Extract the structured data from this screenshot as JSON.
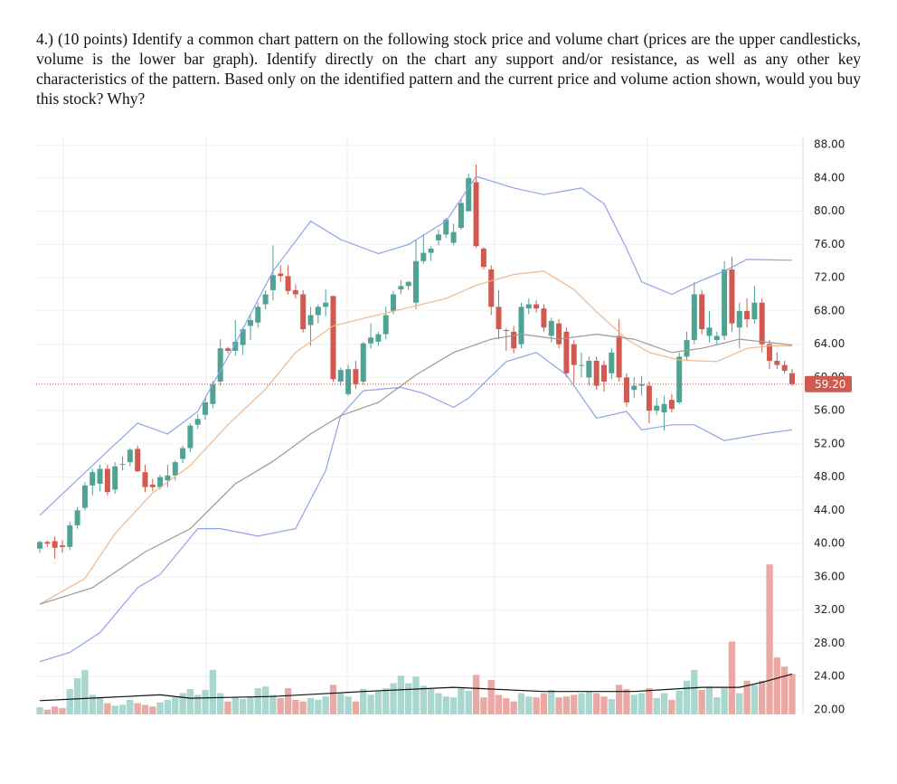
{
  "question": "4.) (10 points) Identify a common chart pattern on the following stock price and volume chart (prices are the upper candlesticks, volume is the lower bar graph). Identify directly on the chart any support and/or resistance, as well as any other key characteristics of the pattern. Based only on the identified pattern and the current price and volume action shown, would you buy this stock? Why?",
  "chart_data": {
    "type": "candlestick",
    "ylim": [
      19.45,
      89.1
    ],
    "yticks": [
      {
        "value": 20,
        "label": "20.00"
      },
      {
        "value": 24,
        "label": "24.00"
      },
      {
        "value": 28,
        "label": "28.00"
      },
      {
        "value": 32,
        "label": "32.00"
      },
      {
        "value": 36,
        "label": "36.00"
      },
      {
        "value": 40,
        "label": "40.00"
      },
      {
        "value": 44,
        "label": "44.00"
      },
      {
        "value": 48,
        "label": "48.00"
      },
      {
        "value": 52,
        "label": "52.00"
      },
      {
        "value": 56,
        "label": "56.00"
      },
      {
        "value": 60,
        "label": "60.00"
      },
      {
        "value": 64,
        "label": "64.00"
      },
      {
        "value": 68,
        "label": "68.00"
      },
      {
        "value": 72,
        "label": "72.00"
      },
      {
        "value": 76,
        "label": "76.00"
      },
      {
        "value": 80,
        "label": "80.00"
      },
      {
        "value": 84,
        "label": "84.00"
      },
      {
        "value": 88,
        "label": "88.00"
      }
    ],
    "grid": true,
    "up_color": "#4fa394",
    "down_color": "#d2594f",
    "up_volume_color": "#a9d6ce",
    "down_volume_color": "#eba9a5",
    "last_price": {
      "value": 59.2,
      "label": "59.20"
    },
    "ohlc": [
      [
        39.4,
        40.4,
        38.9,
        40.2
      ],
      [
        40.2,
        40.4,
        39.6,
        40.0
      ],
      [
        40.3,
        40.9,
        38.2,
        39.5
      ],
      [
        39.8,
        40.4,
        38.9,
        39.6
      ],
      [
        39.6,
        42.6,
        39.2,
        42.2
      ],
      [
        42.2,
        44.4,
        41.8,
        44.0
      ],
      [
        44.3,
        47.4,
        44.0,
        47.0
      ],
      [
        47.0,
        49.0,
        45.8,
        48.6
      ],
      [
        47.2,
        49.5,
        46.3,
        49.0
      ],
      [
        49.0,
        49.5,
        45.8,
        46.2
      ],
      [
        46.5,
        49.8,
        46.0,
        49.3
      ],
      [
        49.5,
        50.5,
        48.8,
        49.6
      ],
      [
        49.8,
        51.5,
        49.3,
        51.3
      ],
      [
        51.4,
        51.8,
        48.6,
        48.7
      ],
      [
        48.6,
        49.5,
        46.2,
        46.8
      ],
      [
        47.1,
        47.8,
        46.3,
        46.8
      ],
      [
        46.8,
        48.3,
        46.5,
        48.0
      ],
      [
        47.6,
        49.5,
        46.8,
        48.2
      ],
      [
        48.2,
        50.0,
        47.6,
        49.8
      ],
      [
        50.2,
        51.8,
        49.7,
        51.5
      ],
      [
        51.5,
        54.5,
        51.0,
        54.2
      ],
      [
        54.3,
        55.6,
        53.8,
        55.0
      ],
      [
        55.5,
        57.5,
        54.9,
        57.0
      ],
      [
        56.8,
        59.6,
        56.3,
        59.2
      ],
      [
        59.5,
        64.6,
        59.0,
        63.5
      ],
      [
        63.5,
        63.7,
        62.9,
        63.2
      ],
      [
        63.2,
        66.9,
        62.6,
        64.3
      ],
      [
        63.9,
        66.0,
        62.7,
        65.8
      ],
      [
        66.2,
        67.6,
        64.5,
        66.9
      ],
      [
        66.6,
        69.0,
        66.0,
        68.5
      ],
      [
        68.8,
        70.5,
        68.2,
        70.0
      ],
      [
        70.5,
        75.9,
        69.3,
        72.3
      ],
      [
        72.5,
        73.5,
        71.5,
        72.2
      ],
      [
        72.2,
        73.5,
        70.0,
        70.4
      ],
      [
        70.5,
        71.2,
        69.5,
        70.0
      ],
      [
        70.0,
        70.5,
        65.4,
        65.8
      ],
      [
        66.3,
        68.5,
        63.8,
        67.5
      ],
      [
        67.5,
        68.8,
        66.5,
        68.5
      ],
      [
        68.5,
        70.6,
        67.4,
        69.0
      ],
      [
        69.8,
        69.8,
        59.5,
        59.8
      ],
      [
        59.5,
        61.2,
        59.0,
        60.9
      ],
      [
        58.0,
        61.5,
        57.8,
        61.0
      ],
      [
        61.0,
        62.0,
        58.6,
        59.2
      ],
      [
        59.5,
        64.3,
        59.1,
        64.1
      ],
      [
        64.1,
        66.5,
        63.5,
        64.8
      ],
      [
        64.3,
        65.5,
        63.8,
        65.2
      ],
      [
        65.2,
        68.5,
        64.6,
        67.5
      ],
      [
        68.0,
        70.4,
        67.6,
        70.0
      ],
      [
        70.6,
        71.7,
        70.0,
        71.0
      ],
      [
        71.0,
        71.6,
        70.5,
        71.5
      ],
      [
        69.0,
        76.5,
        68.2,
        74.0
      ],
      [
        74.0,
        77.2,
        73.7,
        75.0
      ],
      [
        75.0,
        75.8,
        74.0,
        75.5
      ],
      [
        76.5,
        77.8,
        75.9,
        77.2
      ],
      [
        77.2,
        79.2,
        76.8,
        79.0
      ],
      [
        76.2,
        78.5,
        75.9,
        77.5
      ],
      [
        78.0,
        81.5,
        77.8,
        81.0
      ],
      [
        80.0,
        84.5,
        80.0,
        84.0
      ],
      [
        83.5,
        85.6,
        75.6,
        75.8
      ],
      [
        75.5,
        75.7,
        73.0,
        73.3
      ],
      [
        73.0,
        73.5,
        67.5,
        68.5
      ],
      [
        68.5,
        70.5,
        64.6,
        65.8
      ],
      [
        65.7,
        65.9,
        63.2,
        65.6
      ],
      [
        65.5,
        66.2,
        62.9,
        63.5
      ],
      [
        64.0,
        69.0,
        63.5,
        68.5
      ],
      [
        68.3,
        69.5,
        67.6,
        68.8
      ],
      [
        68.8,
        69.3,
        67.8,
        68.3
      ],
      [
        68.3,
        68.8,
        65.5,
        66.0
      ],
      [
        65.0,
        67.2,
        64.2,
        66.8
      ],
      [
        66.5,
        67.0,
        63.5,
        64.0
      ],
      [
        65.5,
        66.0,
        60.0,
        60.5
      ],
      [
        64.0,
        64.5,
        59.3,
        61.5
      ],
      [
        61.5,
        63.0,
        60.0,
        61.5
      ],
      [
        60.0,
        62.5,
        59.0,
        62.0
      ],
      [
        62.0,
        62.5,
        58.5,
        59.0
      ],
      [
        61.5,
        62.0,
        58.3,
        59.5
      ],
      [
        60.5,
        63.5,
        59.8,
        63.0
      ],
      [
        65.0,
        67.0,
        59.5,
        60.0
      ],
      [
        60.0,
        60.5,
        56.5,
        57.0
      ],
      [
        58.5,
        60.0,
        57.5,
        59.0
      ],
      [
        59.0,
        60.2,
        57.8,
        59.2
      ],
      [
        59.0,
        59.5,
        54.5,
        56.0
      ],
      [
        56.0,
        57.5,
        55.5,
        56.6
      ],
      [
        55.8,
        57.8,
        53.6,
        56.8
      ],
      [
        57.3,
        58.0,
        55.8,
        56.2
      ],
      [
        57.0,
        63.0,
        56.8,
        62.5
      ],
      [
        62.5,
        65.5,
        62.0,
        64.5
      ],
      [
        64.5,
        71.5,
        64.0,
        70.0
      ],
      [
        70.0,
        70.5,
        65.2,
        65.8
      ],
      [
        65.0,
        68.0,
        64.2,
        66.0
      ],
      [
        64.5,
        65.5,
        64.0,
        65.0
      ],
      [
        65.0,
        74.0,
        64.5,
        73.0
      ],
      [
        73.0,
        74.5,
        65.5,
        66.5
      ],
      [
        66.0,
        69.0,
        63.5,
        68.0
      ],
      [
        68.0,
        69.5,
        66.0,
        67.0
      ],
      [
        67.0,
        71.0,
        66.5,
        69.0
      ],
      [
        69.0,
        69.5,
        63.0,
        64.0
      ],
      [
        64.0,
        64.5,
        61.0,
        62.0
      ],
      [
        62.0,
        63.0,
        61.0,
        61.5
      ],
      [
        61.5,
        62.0,
        60.5,
        60.8
      ],
      [
        60.5,
        61.0,
        59.0,
        59.2
      ]
    ],
    "volume": [
      20.3,
      20.0,
      20.4,
      20.2,
      22.5,
      23.8,
      24.8,
      21.8,
      21.5,
      20.8,
      20.5,
      20.6,
      21.2,
      20.8,
      20.6,
      20.4,
      20.9,
      21.2,
      21.5,
      22.0,
      22.5,
      21.8,
      22.4,
      24.8,
      22.0,
      21.0,
      21.5,
      21.3,
      21.6,
      22.6,
      22.8,
      21.8,
      21.4,
      22.6,
      21.2,
      21.0,
      21.4,
      21.2,
      21.6,
      23.0,
      22.0,
      21.6,
      21.0,
      22.5,
      21.8,
      22.2,
      22.6,
      23.2,
      24.1,
      23.2,
      24.0,
      22.9,
      22.5,
      22.0,
      21.6,
      21.5,
      22.6,
      22.3,
      24.2,
      21.5,
      23.6,
      21.8,
      21.4,
      21.0,
      22.0,
      21.6,
      21.5,
      22.0,
      22.4,
      21.5,
      21.6,
      21.8,
      22.0,
      22.2,
      22.0,
      21.6,
      21.3,
      23.0,
      22.5,
      21.8,
      22.0,
      22.6,
      21.4,
      22.0,
      21.2,
      22.3,
      23.5,
      24.8,
      22.4,
      22.8,
      21.5,
      22.6,
      28.2,
      22.0,
      23.5,
      23.0,
      23.5,
      37.5,
      26.3,
      25.2,
      24.3
    ],
    "lines": [
      {
        "color": "#8fa3ea",
        "x": [
          0,
          7,
          13,
          17,
          21,
          26,
          31,
          36,
          40,
          45,
          49,
          54,
          58,
          63,
          67,
          72,
          75,
          78,
          80,
          84,
          88,
          91,
          94,
          100
        ],
        "values": [
          43.4,
          49.4,
          54.5,
          53.2,
          55.9,
          64.1,
          72.8,
          78.8,
          76.6,
          74.9,
          76.0,
          78.8,
          84.2,
          82.8,
          82.0,
          82.8,
          80.9,
          75.5,
          71.5,
          70.0,
          71.7,
          72.8,
          74.2,
          74.1
        ]
      },
      {
        "color": "#8fa3ea",
        "x": [
          0,
          4,
          8,
          13,
          16,
          21,
          24,
          29,
          34,
          38,
          40,
          43,
          48,
          51,
          55,
          57,
          62,
          66,
          70,
          74,
          78,
          80,
          84,
          87,
          91,
          96,
          100
        ],
        "values": [
          25.8,
          26.9,
          29.3,
          34.7,
          36.3,
          41.8,
          41.8,
          40.9,
          41.8,
          48.8,
          55.4,
          58.4,
          58.8,
          58.1,
          56.4,
          57.5,
          61.9,
          63.0,
          60.3,
          55.1,
          55.9,
          53.7,
          54.3,
          54.3,
          52.4,
          53.2,
          53.7
        ]
      },
      {
        "color": "#f1b68a",
        "x": [
          0,
          6,
          10,
          15,
          20,
          25,
          30,
          34,
          39,
          43,
          49,
          54,
          58,
          63,
          67,
          71,
          74,
          78,
          81,
          85,
          90,
          94,
          97,
          100
        ],
        "values": [
          32.7,
          35.8,
          41.2,
          46.1,
          49.4,
          54.3,
          58.6,
          63.0,
          66.2,
          67.1,
          68.4,
          69.5,
          71.1,
          72.4,
          72.8,
          70.6,
          67.9,
          64.6,
          63.0,
          62.1,
          61.9,
          63.5,
          63.8,
          63.8
        ]
      },
      {
        "color": "#9a9a9a",
        "x": [
          0,
          7,
          14,
          20,
          26,
          31,
          36,
          40,
          45,
          50,
          55,
          60,
          64,
          69,
          74,
          79,
          84,
          88,
          93,
          100
        ],
        "values": [
          32.7,
          34.7,
          39.0,
          41.8,
          47.2,
          49.9,
          53.2,
          55.4,
          57.0,
          60.3,
          63.0,
          64.6,
          65.2,
          64.6,
          65.2,
          64.6,
          63.0,
          63.5,
          64.6,
          63.9
        ]
      },
      {
        "color": "#111111",
        "x": [
          0,
          16,
          20,
          31,
          43,
          55,
          67,
          79,
          88,
          93,
          96,
          100
        ],
        "values": [
          21.1,
          21.8,
          21.4,
          21.6,
          22.2,
          22.7,
          22.2,
          22.2,
          22.7,
          22.7,
          23.3,
          24.3
        ]
      }
    ]
  }
}
